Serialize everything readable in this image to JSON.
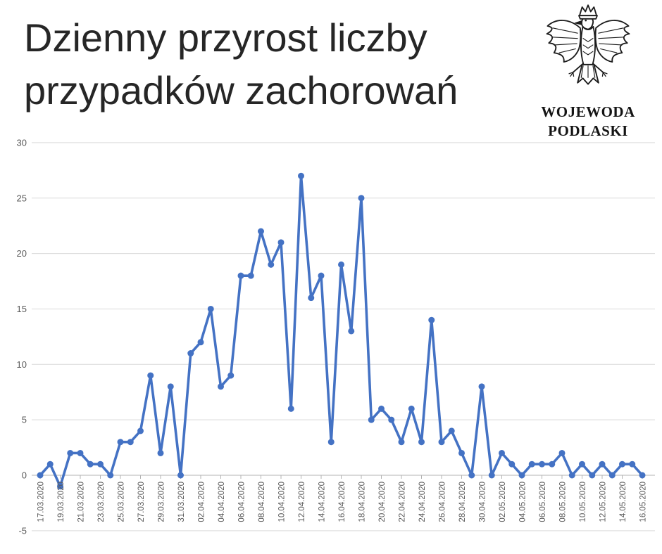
{
  "title": {
    "line1": "Dzienny przyrost liczby",
    "line2": "przypadków zachorowań"
  },
  "logo": {
    "title": "WOJEWODA",
    "region": "PODLASKI",
    "emblem": "polish-eagle-coat-of-arms"
  },
  "chart_data": {
    "type": "line",
    "title": "Dzienny przyrost liczby przypadków zachorowań",
    "xlabel": "",
    "ylabel": "",
    "ylim": [
      -5,
      30
    ],
    "y_ticks": [
      30,
      25,
      20,
      15,
      10,
      5,
      0,
      -5
    ],
    "x_label_every": 2,
    "grid": true,
    "legend": "none",
    "series_name": "dzienny przyrost",
    "series_color": "#4472C4",
    "grid_color": "#D9D9D9",
    "axis_color": "#B3B3B3",
    "tick_text_color": "#595959",
    "x": [
      "17.03.2020",
      "18.03.2020",
      "19.03.2020",
      "20.03.2020",
      "21.03.2020",
      "22.03.2020",
      "23.03.2020",
      "24.03.2020",
      "25.03.2020",
      "26.03.2020",
      "27.03.2020",
      "28.03.2020",
      "29.03.2020",
      "30.03.2020",
      "31.03.2020",
      "01.04.2020",
      "02.04.2020",
      "03.04.2020",
      "04.04.2020",
      "05.04.2020",
      "06.04.2020",
      "07.04.2020",
      "08.04.2020",
      "09.04.2020",
      "10.04.2020",
      "11.04.2020",
      "12.04.2020",
      "13.04.2020",
      "14.04.2020",
      "15.04.2020",
      "16.04.2020",
      "17.04.2020",
      "18.04.2020",
      "19.04.2020",
      "20.04.2020",
      "21.04.2020",
      "22.04.2020",
      "23.04.2020",
      "24.04.2020",
      "25.04.2020",
      "26.04.2020",
      "27.04.2020",
      "28.04.2020",
      "29.04.2020",
      "30.04.2020",
      "01.05.2020",
      "02.05.2020",
      "03.05.2020",
      "04.05.2020",
      "05.05.2020",
      "06.05.2020",
      "07.05.2020",
      "08.05.2020",
      "09.05.2020",
      "10.05.2020",
      "11.05.2020",
      "12.05.2020",
      "13.05.2020",
      "14.05.2020",
      "15.05.2020",
      "16.05.2020"
    ],
    "values": [
      0,
      1,
      -1,
      2,
      2,
      1,
      1,
      0,
      3,
      3,
      4,
      9,
      2,
      8,
      0,
      11,
      12,
      15,
      8,
      9,
      18,
      18,
      22,
      19,
      21,
      6,
      27,
      16,
      18,
      3,
      19,
      13,
      25,
      5,
      6,
      5,
      3,
      6,
      3,
      14,
      3,
      4,
      2,
      0,
      8,
      0,
      2,
      1,
      0,
      1,
      1,
      1,
      2,
      0,
      1,
      0,
      1,
      0,
      1,
      1,
      0
    ]
  }
}
